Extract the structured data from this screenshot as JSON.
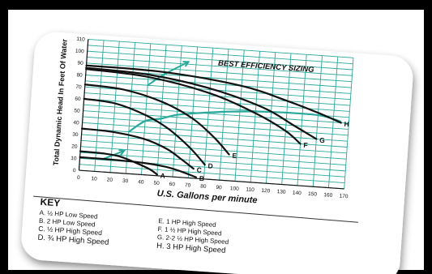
{
  "chart_data": {
    "type": "line",
    "title": "BEST EFFICIENCY SIZING",
    "xlabel": "U.S. Gallons per minute",
    "ylabel": "Total Dynamic Head In Feet Of Water",
    "xlim": [
      0,
      170
    ],
    "ylim": [
      0,
      110
    ],
    "x_ticks": [
      "0",
      "10",
      "20",
      "30",
      "40",
      "50",
      "60",
      "70",
      "80",
      "90",
      "100",
      "110",
      "120",
      "130",
      "140",
      "150",
      "160",
      "170"
    ],
    "y_ticks": [
      "0",
      "10",
      "20",
      "30",
      "40",
      "50",
      "60",
      "70",
      "80",
      "90",
      "100",
      "110"
    ],
    "grid": true,
    "grid_color": "#2aa89a",
    "curve_color": "#111111",
    "series": [
      {
        "name": "A",
        "x": [
          0,
          15,
          25,
          35,
          45,
          50
        ],
        "y": [
          16,
          15.5,
          14,
          10,
          5,
          1
        ]
      },
      {
        "name": "B",
        "x": [
          0,
          20,
          40,
          55,
          65,
          75
        ],
        "y": [
          11,
          10.8,
          10,
          8,
          5,
          1
        ]
      },
      {
        "name": "C",
        "x": [
          0,
          20,
          40,
          55,
          65,
          73
        ],
        "y": [
          35,
          34,
          30,
          23,
          15,
          8
        ]
      },
      {
        "name": "D",
        "x": [
          0,
          20,
          40,
          55,
          70,
          80
        ],
        "y": [
          60,
          58,
          50,
          40,
          25,
          12
        ]
      },
      {
        "name": "E",
        "x": [
          0,
          25,
          50,
          70,
          85,
          95
        ],
        "y": [
          72,
          70,
          62,
          50,
          35,
          22
        ]
      },
      {
        "name": "F",
        "x": [
          0,
          40,
          80,
          110,
          130,
          140
        ],
        "y": [
          85,
          82,
          72,
          58,
          45,
          35
        ]
      },
      {
        "name": "G",
        "x": [
          0,
          40,
          80,
          115,
          135,
          150
        ],
        "y": [
          86,
          84,
          76,
          63,
          50,
          40
        ]
      },
      {
        "name": "H",
        "x": [
          0,
          50,
          100,
          130,
          150,
          165
        ],
        "y": [
          88,
          87,
          80,
          70,
          62,
          55
        ]
      }
    ],
    "efficiency_line": {
      "x": [
        30,
        40,
        50,
        60,
        75,
        95,
        120,
        150,
        165
      ],
      "y": [
        35,
        45,
        48,
        52,
        55,
        58,
        60,
        60,
        56
      ]
    },
    "efficiency_arrows": [
      {
        "x": [
          40,
          50,
          65
        ],
        "y": [
          75,
          85,
          97
        ]
      },
      {
        "x": [
          15,
          20,
          28
        ],
        "y": [
          11,
          14,
          19
        ]
      }
    ]
  },
  "key": {
    "title": "KEY",
    "left": [
      "A. ½ HP Low Speed",
      "B. 2 HP Low Speed",
      "C. ½ HP High Speed",
      "D. ¾ HP High Speed"
    ],
    "right": [
      "E. 1 HP High Speed",
      "F. 1 ½ HP High Speed",
      "G. 2-2 ½ HP High Speed",
      "H. 3 HP High Speed"
    ]
  }
}
